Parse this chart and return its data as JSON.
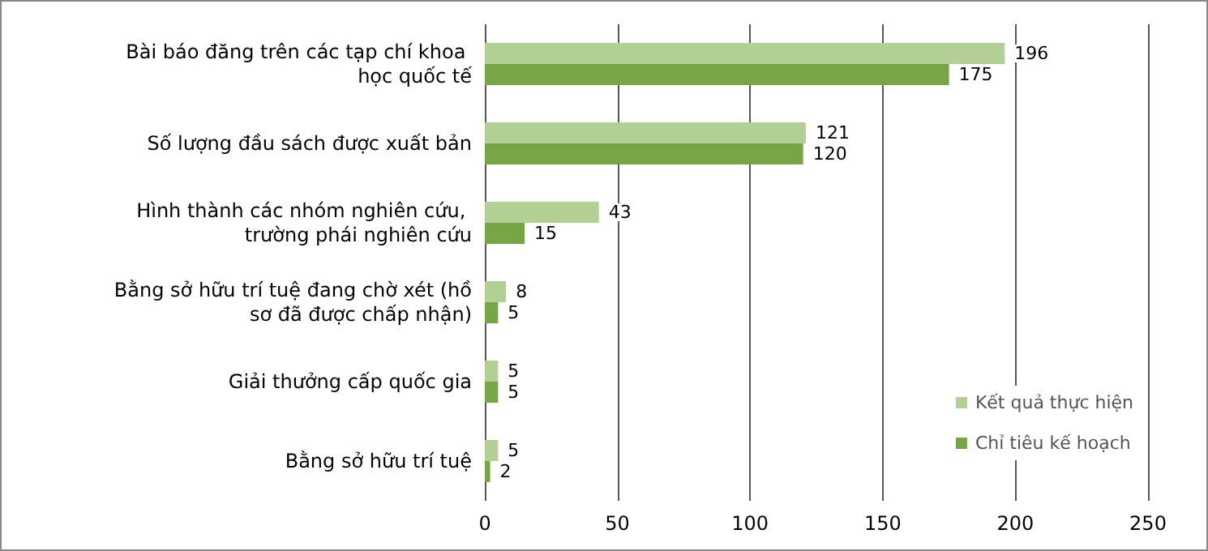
{
  "chart_data": {
    "type": "bar",
    "orientation": "horizontal",
    "categories": [
      "Bài báo đăng trên các tạp chí khoa học quốc tế",
      "Số lượng đầu sách được xuất bản",
      "Hình thành các nhóm nghiên cứu, trường phái nghiên cứu",
      "Bằng sở hữu trí tuệ đang chờ xét (hồ sơ đã được chấp nhận)",
      "Giải thưởng cấp quốc gia",
      "Bằng sở hữu trí tuệ"
    ],
    "series": [
      {
        "name": "Kết quả thực hiện",
        "color": "#b2cf94",
        "values": [
          196,
          121,
          43,
          8,
          5,
          5
        ]
      },
      {
        "name": "Chỉ tiêu kế hoạch",
        "color": "#77a545",
        "values": [
          175,
          120,
          15,
          5,
          5,
          2
        ]
      }
    ],
    "xlim": [
      0,
      250
    ],
    "xticks": [
      0,
      50,
      100,
      150,
      200,
      250
    ],
    "grid": "x",
    "legend": "bottom right",
    "data_labels": true
  }
}
